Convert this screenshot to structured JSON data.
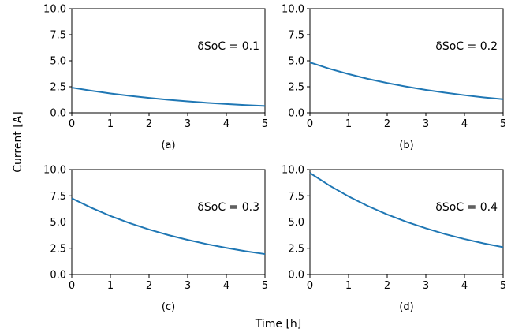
{
  "figure": {
    "xlabel": "Time [h]",
    "ylabel": "Current [A]",
    "line_color": "#1f77b4"
  },
  "chart_data": [
    {
      "type": "line",
      "panel_label": "(a)",
      "annotation": "δSoC = 0.1",
      "xlim": [
        0,
        5
      ],
      "ylim": [
        0,
        10
      ],
      "xticks": [
        "0",
        "1",
        "2",
        "3",
        "4",
        "5"
      ],
      "yticks": [
        "0.0",
        "2.5",
        "5.0",
        "7.5",
        "10.0"
      ],
      "grid": false,
      "series": [
        {
          "x": [
            0,
            0.5,
            1,
            1.5,
            2,
            2.5,
            3,
            3.5,
            4,
            4.5,
            5
          ],
          "values": [
            2.42,
            2.12,
            1.86,
            1.63,
            1.43,
            1.25,
            1.1,
            0.96,
            0.84,
            0.74,
            0.65
          ]
        }
      ]
    },
    {
      "type": "line",
      "panel_label": "(b)",
      "annotation": "δSoC = 0.2",
      "xlim": [
        0,
        5
      ],
      "ylim": [
        0,
        10
      ],
      "xticks": [
        "0",
        "1",
        "2",
        "3",
        "4",
        "5"
      ],
      "yticks": [
        "0.0",
        "2.5",
        "5.0",
        "7.5",
        "10.0"
      ],
      "grid": false,
      "series": [
        {
          "x": [
            0,
            0.5,
            1,
            1.5,
            2,
            2.5,
            3,
            3.5,
            4,
            4.5,
            5
          ],
          "values": [
            4.84,
            4.24,
            3.72,
            3.26,
            2.86,
            2.51,
            2.2,
            1.93,
            1.69,
            1.48,
            1.3
          ]
        }
      ]
    },
    {
      "type": "line",
      "panel_label": "(c)",
      "annotation": "δSoC = 0.3",
      "xlim": [
        0,
        5
      ],
      "ylim": [
        0,
        10
      ],
      "xticks": [
        "0",
        "1",
        "2",
        "3",
        "4",
        "5"
      ],
      "yticks": [
        "0.0",
        "2.5",
        "5.0",
        "7.5",
        "10.0"
      ],
      "grid": false,
      "series": [
        {
          "x": [
            0,
            0.5,
            1,
            1.5,
            2,
            2.5,
            3,
            3.5,
            4,
            4.5,
            5
          ],
          "values": [
            7.26,
            6.37,
            5.58,
            4.89,
            4.29,
            3.76,
            3.3,
            2.89,
            2.54,
            2.22,
            1.95
          ]
        }
      ]
    },
    {
      "type": "line",
      "panel_label": "(d)",
      "annotation": "δSoC = 0.4",
      "xlim": [
        0,
        5
      ],
      "ylim": [
        0,
        10
      ],
      "xticks": [
        "0",
        "1",
        "2",
        "3",
        "4",
        "5"
      ],
      "yticks": [
        "0.0",
        "2.5",
        "5.0",
        "7.5",
        "10.0"
      ],
      "grid": false,
      "series": [
        {
          "x": [
            0,
            0.5,
            1,
            1.5,
            2,
            2.5,
            3,
            3.5,
            4,
            4.5,
            5
          ],
          "values": [
            9.68,
            8.49,
            7.44,
            6.52,
            5.72,
            5.01,
            4.4,
            3.85,
            3.38,
            2.96,
            2.6
          ]
        }
      ]
    }
  ]
}
